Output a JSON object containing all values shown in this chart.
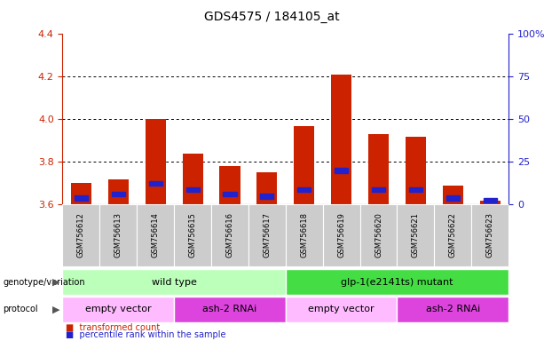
{
  "title": "GDS4575 / 184105_at",
  "samples": [
    "GSM756612",
    "GSM756613",
    "GSM756614",
    "GSM756615",
    "GSM756616",
    "GSM756617",
    "GSM756618",
    "GSM756619",
    "GSM756620",
    "GSM756621",
    "GSM756622",
    "GSM756623"
  ],
  "bar_values": [
    3.7,
    3.72,
    4.0,
    3.84,
    3.78,
    3.75,
    3.97,
    4.21,
    3.93,
    3.92,
    3.69,
    3.62
  ],
  "blue_values": [
    3.63,
    3.65,
    3.7,
    3.67,
    3.65,
    3.64,
    3.67,
    3.76,
    3.67,
    3.67,
    3.63,
    3.62
  ],
  "ymin": 3.6,
  "ymax": 4.4,
  "yticks": [
    3.6,
    3.8,
    4.0,
    4.2,
    4.4
  ],
  "right_yticks": [
    0,
    25,
    50,
    75,
    100
  ],
  "bar_color": "#cc2200",
  "blue_color": "#2222cc",
  "bar_width": 0.55,
  "genotype_groups": [
    {
      "label": "wild type",
      "start": 0,
      "end": 6,
      "color": "#bbffbb"
    },
    {
      "label": "glp-1(e2141ts) mutant",
      "start": 6,
      "end": 12,
      "color": "#44dd44"
    }
  ],
  "protocol_groups": [
    {
      "label": "empty vector",
      "start": 0,
      "end": 3,
      "color": "#ffbbff"
    },
    {
      "label": "ash-2 RNAi",
      "start": 3,
      "end": 6,
      "color": "#dd44dd"
    },
    {
      "label": "empty vector",
      "start": 6,
      "end": 9,
      "color": "#ffbbff"
    },
    {
      "label": "ash-2 RNAi",
      "start": 9,
      "end": 12,
      "color": "#dd44dd"
    }
  ],
  "tick_color_left": "#cc2200",
  "tick_color_right": "#2222cc",
  "sample_bg": "#cccccc",
  "fig_width": 6.13,
  "fig_height": 3.84,
  "fig_dpi": 100
}
